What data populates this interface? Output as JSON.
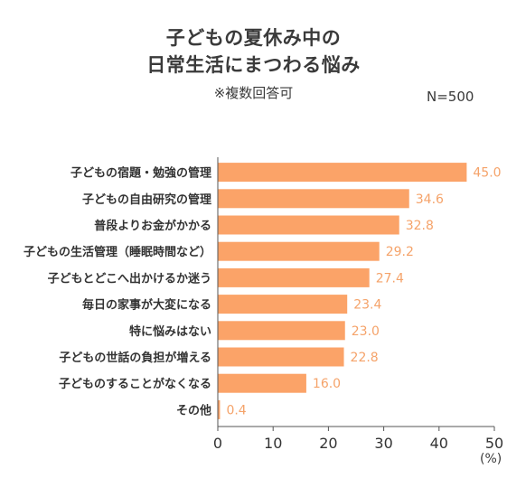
{
  "chart_data": {
    "type": "bar",
    "orientation": "horizontal",
    "title_lines": [
      "子どもの夏休み中の",
      "日常生活にまつわる悩み"
    ],
    "subtitle": "※複数回答可",
    "sample_size": "N=500",
    "unit": "(%)",
    "categories": [
      "子どもの宿題・勉強の管理",
      "子どもの自由研究の管理",
      "普段よりお金がかかる",
      "子どもの生活管理（睡眠時間など）",
      "子どもとどこへ出かけるか迷う",
      "毎日の家事が大変になる",
      "特に悩みはない",
      "子どもの世話の負担が増える",
      "子どものすることがなくなる",
      "その他"
    ],
    "values": [
      45.0,
      34.6,
      32.8,
      29.2,
      27.4,
      23.4,
      23.0,
      22.8,
      16.0,
      0.4
    ],
    "value_labels": [
      "45.0",
      "34.6",
      "32.8",
      "29.2",
      "27.4",
      "23.4",
      "23.0",
      "22.8",
      "16.0",
      "0.4"
    ],
    "xlim": [
      0,
      50
    ],
    "x_ticks": [
      "0",
      "10",
      "20",
      "30",
      "40",
      "50"
    ],
    "grid": false,
    "bar_color": "#FBA368",
    "label_color": "#F5A36A",
    "axis_color": "#555555"
  }
}
